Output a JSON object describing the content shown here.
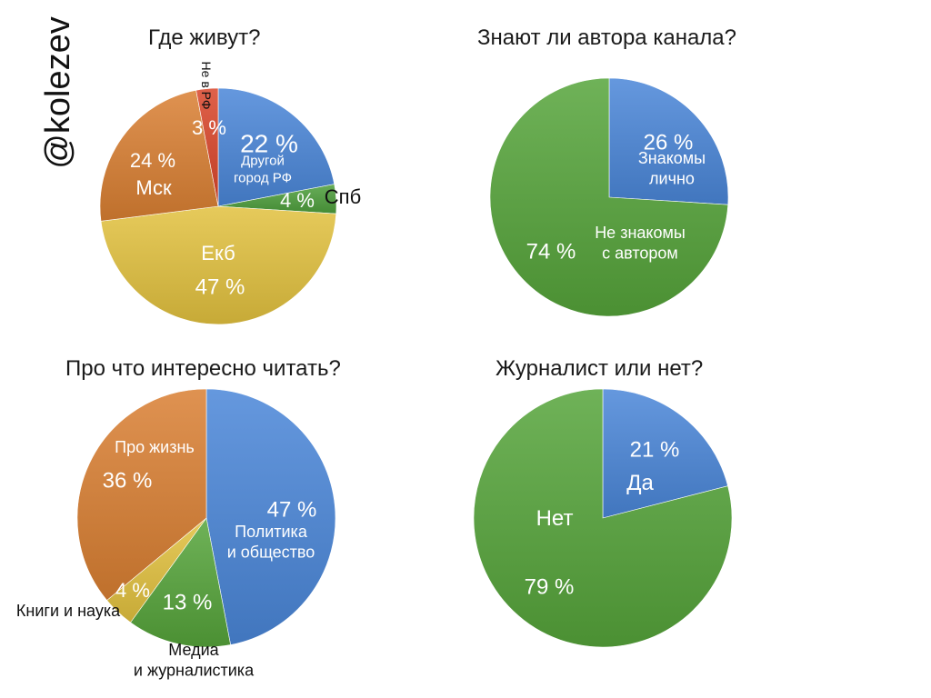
{
  "watermark": "@kolezev",
  "chart_data": [
    {
      "type": "pie",
      "title": "Где живут?",
      "slices": [
        {
          "label": "Другой город РФ",
          "value": 22,
          "pct_text": "22 %",
          "color": "#4a86d8"
        },
        {
          "label": "Спб",
          "value": 4,
          "pct_text": "4 %",
          "color": "#4d9e3c"
        },
        {
          "label": "Екб",
          "value": 47,
          "pct_text": "47 %",
          "color": "#e2c13e"
        },
        {
          "label": "Мск",
          "value": 24,
          "pct_text": "24 %",
          "color": "#d97f32"
        },
        {
          "label": "Не в РФ",
          "value": 3,
          "pct_text": "3 %",
          "color": "#d9452a"
        }
      ]
    },
    {
      "type": "pie",
      "title": "Знают ли автора канала?",
      "slices": [
        {
          "label": "Знакомы лично",
          "value": 26,
          "pct_text": "26 %",
          "color": "#4a86d8"
        },
        {
          "label": "Не знакомы с автором",
          "value": 74,
          "pct_text": "74 %",
          "color": "#55a43a"
        }
      ]
    },
    {
      "type": "pie",
      "title": "Про что интересно читать?",
      "slices": [
        {
          "label": "Политика и общество",
          "value": 47,
          "pct_text": "47 %",
          "color": "#4a86d8"
        },
        {
          "label": "Медиа и журналистика",
          "value": 13,
          "pct_text": "13 %",
          "color": "#55a43a"
        },
        {
          "label": "Книги и наука",
          "value": 4,
          "pct_text": "4 %",
          "color": "#e2c13e"
        },
        {
          "label": "Про жизнь",
          "value": 36,
          "pct_text": "36 %",
          "color": "#d97f32"
        }
      ]
    },
    {
      "type": "pie",
      "title": "Журналист или нет?",
      "slices": [
        {
          "label": "Да",
          "value": 21,
          "pct_text": "21 %",
          "color": "#4a86d8"
        },
        {
          "label": "Нет",
          "value": 79,
          "pct_text": "79 %",
          "color": "#55a43a"
        }
      ]
    }
  ]
}
